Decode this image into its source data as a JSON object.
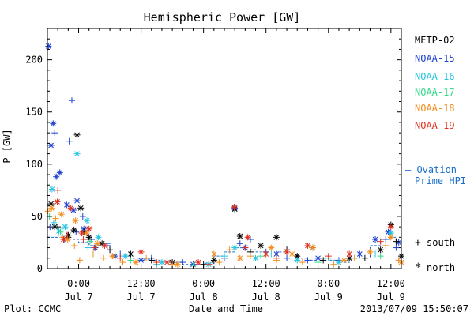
{
  "chart_data": {
    "type": "scatter",
    "title": "Hemispheric Power [GW]",
    "ylabel": "P [GW]",
    "xlabel": "Date and Time",
    "ylim": [
      0,
      230
    ],
    "yticks": [
      0,
      50,
      100,
      150,
      200
    ],
    "xlim_hours": [
      -6,
      62
    ],
    "xticks": [
      {
        "h": 0,
        "time": "0:00",
        "date": "Jul 7"
      },
      {
        "h": 12,
        "time": "12:00",
        "date": "Jul 7"
      },
      {
        "h": 24,
        "time": "0:00",
        "date": "Jul 8"
      },
      {
        "h": 36,
        "time": "12:00",
        "date": "Jul 8"
      },
      {
        "h": 48,
        "time": "0:00",
        "date": "Jul 9"
      },
      {
        "h": 60,
        "time": "12:00",
        "date": "Jul 9"
      }
    ],
    "legend": {
      "placement": "right",
      "satellites": [
        {
          "name": "METP-02",
          "color": "#000000"
        },
        {
          "name": "NOAA-15",
          "color": "#1a3fcf"
        },
        {
          "name": "NOAA-16",
          "color": "#22c4e0"
        },
        {
          "name": "NOAA-17",
          "color": "#33d98a"
        },
        {
          "name": "NOAA-18",
          "color": "#f28c1a"
        },
        {
          "name": "NOAA-19",
          "color": "#e0301e"
        }
      ],
      "model_line1": "— Ovation",
      "model_line2": "Prime HPI",
      "model_color": "#1a6fc9",
      "south_label": "south",
      "north_label": "north"
    },
    "series": [
      {
        "name": "NOAA-15",
        "marker": "+",
        "points": [
          [
            -5.5,
            40
          ],
          [
            -4.6,
            130
          ],
          [
            -2.8,
            28
          ],
          [
            -1.8,
            122
          ],
          [
            -0.5,
            35
          ],
          [
            0.8,
            50
          ],
          [
            2.5,
            28
          ],
          [
            5.5,
            22
          ],
          [
            8,
            14
          ],
          [
            14,
            10
          ],
          [
            20,
            6
          ],
          [
            28,
            10
          ],
          [
            31,
            24
          ],
          [
            33,
            28
          ],
          [
            36,
            16
          ],
          [
            40,
            10
          ],
          [
            44,
            8
          ],
          [
            50,
            8
          ],
          [
            56,
            14
          ],
          [
            59,
            28
          ],
          [
            61,
            20
          ]
        ]
      },
      {
        "name": "NOAA-15",
        "marker": "*",
        "points": [
          [
            -5.8,
            213
          ],
          [
            -5.3,
            118
          ],
          [
            -4.9,
            139
          ],
          [
            -4.3,
            88
          ],
          [
            -3.6,
            92
          ],
          [
            -2.3,
            61
          ],
          [
            -1.0,
            56
          ],
          [
            -0.3,
            65
          ],
          [
            1.0,
            38
          ],
          [
            3.2,
            20
          ],
          [
            7,
            12
          ],
          [
            12,
            8
          ],
          [
            22,
            4
          ],
          [
            30,
            58
          ],
          [
            32,
            20
          ],
          [
            38,
            14
          ],
          [
            46,
            10
          ],
          [
            54,
            14
          ],
          [
            57,
            28
          ],
          [
            59.5,
            35
          ],
          [
            61.5,
            25
          ]
        ]
      },
      {
        "name": "NOAA-15",
        "marker": "+",
        "points": [
          [
            -1.3,
            161
          ]
        ]
      },
      {
        "name": "METP-02",
        "marker": "*",
        "points": [
          [
            -5.3,
            62
          ],
          [
            -4.6,
            40
          ],
          [
            -2.0,
            32
          ],
          [
            -0.9,
            37
          ],
          [
            -0.3,
            128
          ],
          [
            0.4,
            58
          ],
          [
            2,
            30
          ],
          [
            4.5,
            24
          ],
          [
            10,
            14
          ],
          [
            18,
            6
          ],
          [
            26,
            8
          ],
          [
            30,
            57
          ],
          [
            31,
            31
          ],
          [
            35,
            22
          ],
          [
            38,
            30
          ],
          [
            42,
            12
          ],
          [
            45,
            20
          ],
          [
            52,
            10
          ],
          [
            58,
            18
          ],
          [
            60,
            42
          ],
          [
            62,
            12
          ]
        ]
      },
      {
        "name": "METP-02",
        "marker": "+",
        "points": [
          [
            -4,
            40
          ],
          [
            -2,
            30
          ],
          [
            1,
            35
          ],
          [
            6,
            18
          ],
          [
            14,
            8
          ],
          [
            24,
            4
          ],
          [
            33,
            16
          ],
          [
            40,
            18
          ],
          [
            47,
            8
          ],
          [
            55,
            10
          ],
          [
            61,
            26
          ]
        ]
      },
      {
        "name": "NOAA-16",
        "marker": "*",
        "points": [
          [
            -5.1,
            76
          ],
          [
            -3.8,
            36
          ],
          [
            -2.6,
            40
          ],
          [
            -0.3,
            110
          ],
          [
            1.6,
            46
          ],
          [
            3.8,
            30
          ],
          [
            9,
            12
          ],
          [
            16,
            6
          ],
          [
            25,
            4
          ],
          [
            30,
            20
          ],
          [
            34,
            10
          ],
          [
            42,
            8
          ],
          [
            50,
            6
          ],
          [
            60,
            34
          ]
        ]
      },
      {
        "name": "NOAA-16",
        "marker": "+",
        "points": [
          [
            -4.8,
            44
          ],
          [
            -3.2,
            32
          ],
          [
            1.8,
            20
          ],
          [
            7,
            14
          ],
          [
            15,
            4
          ],
          [
            28,
            12
          ],
          [
            37,
            14
          ],
          [
            48,
            10
          ],
          [
            57,
            14
          ]
        ]
      },
      {
        "name": "NOAA-17",
        "marker": "+",
        "points": [
          [
            -5.6,
            50
          ],
          [
            -3.5,
            35
          ],
          [
            2.2,
            26
          ],
          [
            10,
            8
          ],
          [
            22,
            3
          ],
          [
            35,
            12
          ],
          [
            46,
            6
          ],
          [
            58,
            12
          ]
        ]
      },
      {
        "name": "NOAA-18",
        "marker": "+",
        "points": [
          [
            -5.9,
            55
          ],
          [
            -4.4,
            48
          ],
          [
            -3.1,
            30
          ],
          [
            -0.8,
            22
          ],
          [
            0.2,
            8
          ],
          [
            2.8,
            14
          ],
          [
            4.8,
            10
          ],
          [
            8.5,
            6
          ],
          [
            13,
            10
          ],
          [
            18,
            4
          ],
          [
            27,
            6
          ],
          [
            29,
            18
          ],
          [
            33,
            12
          ],
          [
            38,
            8
          ],
          [
            43,
            6
          ],
          [
            49,
            4
          ],
          [
            53,
            10
          ],
          [
            59,
            22
          ],
          [
            61.5,
            8
          ]
        ]
      },
      {
        "name": "NOAA-18",
        "marker": "*",
        "points": [
          [
            -5.2,
            58
          ],
          [
            -3.3,
            52
          ],
          [
            -2.1,
            28
          ],
          [
            -0.6,
            46
          ],
          [
            1.5,
            34
          ],
          [
            3.6,
            24
          ],
          [
            6.5,
            12
          ],
          [
            11,
            6
          ],
          [
            19,
            4
          ],
          [
            26,
            14
          ],
          [
            31,
            10
          ],
          [
            37,
            20
          ],
          [
            41,
            14
          ],
          [
            45,
            20
          ],
          [
            51,
            8
          ],
          [
            56,
            16
          ],
          [
            60,
            30
          ],
          [
            62,
            6
          ]
        ]
      },
      {
        "name": "NOAA-19",
        "marker": "*",
        "points": [
          [
            -4.1,
            64
          ],
          [
            -2.9,
            28
          ],
          [
            -1.5,
            58
          ],
          [
            0.6,
            34
          ],
          [
            2,
            38
          ],
          [
            5,
            22
          ],
          [
            12,
            16
          ],
          [
            17,
            6
          ],
          [
            23,
            6
          ],
          [
            29.9,
            59
          ],
          [
            32.5,
            30
          ],
          [
            36,
            14
          ],
          [
            40,
            16
          ],
          [
            44,
            22
          ],
          [
            52,
            14
          ],
          [
            60,
            40
          ]
        ]
      },
      {
        "name": "NOAA-19",
        "marker": "+",
        "points": [
          [
            -4.0,
            75
          ],
          [
            -2.2,
            32
          ],
          [
            0.9,
            28
          ],
          [
            3,
            20
          ],
          [
            8,
            10
          ],
          [
            15,
            6
          ],
          [
            25,
            4
          ],
          [
            32,
            20
          ],
          [
            38,
            10
          ],
          [
            48,
            12
          ],
          [
            58,
            26
          ]
        ]
      }
    ],
    "model_line": {
      "name": "Ovation Prime HPI",
      "points": [
        [
          -6,
          30
        ],
        [
          -4,
          32
        ],
        [
          -2,
          28
        ],
        [
          0,
          25
        ],
        [
          2,
          22
        ],
        [
          4,
          24
        ],
        [
          6,
          14
        ],
        [
          8,
          12
        ],
        [
          10,
          10
        ],
        [
          12,
          9
        ],
        [
          14,
          8
        ],
        [
          16,
          7
        ],
        [
          18,
          6
        ],
        [
          20,
          4
        ],
        [
          22,
          4
        ],
        [
          24,
          5
        ],
        [
          26,
          12
        ],
        [
          28,
          16
        ],
        [
          30,
          20
        ],
        [
          32,
          18
        ],
        [
          34,
          16
        ],
        [
          36,
          14
        ],
        [
          38,
          16
        ],
        [
          40,
          14
        ],
        [
          42,
          10
        ],
        [
          44,
          8
        ],
        [
          46,
          10
        ],
        [
          48,
          8
        ],
        [
          50,
          6
        ],
        [
          52,
          10
        ],
        [
          54,
          14
        ],
        [
          56,
          22
        ],
        [
          58,
          28
        ],
        [
          60,
          30
        ],
        [
          61,
          26
        ],
        [
          62,
          20
        ]
      ]
    }
  },
  "footer": {
    "plot_label": "Plot: CCMC",
    "axis_caption": "Date and Time",
    "timestamp": "2013/07/09 15:50:07"
  }
}
